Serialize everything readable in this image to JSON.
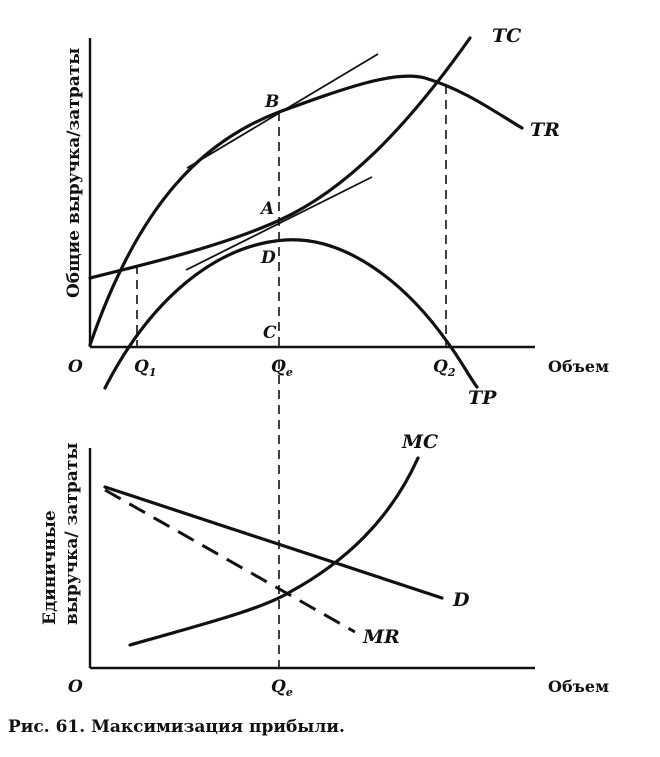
{
  "top_chart": {
    "y_axis_label": "Общие выручка/затраты",
    "x_axis_label": "Объем",
    "origin_label": "O",
    "curves": {
      "tc": "TC",
      "tr": "TR",
      "tp": "TP"
    },
    "points": {
      "a": "A",
      "b": "B",
      "c": "C",
      "d": "D"
    },
    "quantities": {
      "q1": "Q",
      "q1_sub": "1",
      "qe": "Q",
      "qe_sub": "e",
      "q2": "Q",
      "q2_sub": "2"
    }
  },
  "bottom_chart": {
    "y_axis_label_line1": "Единичные",
    "y_axis_label_line2": "выручка/ затраты",
    "x_axis_label": "Объем",
    "origin_label": "O",
    "curves": {
      "mc": "MC",
      "d": "D",
      "mr": "MR"
    },
    "quantity": {
      "qe": "Q",
      "qe_sub": "e"
    }
  },
  "caption": "Рис. 61. Максимизация прибыли."
}
